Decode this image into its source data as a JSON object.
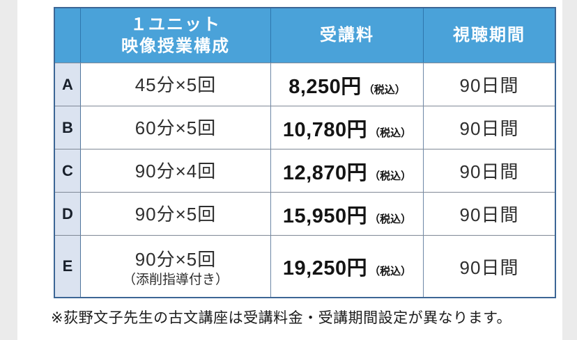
{
  "colors": {
    "page_background": "#ebebeb",
    "panel_background": "#ffffff",
    "header_background": "#4aa2d9",
    "header_text": "#ffffff",
    "row_label_background": "#dbe3f0",
    "table_border": "#3c6695"
  },
  "table": {
    "header": {
      "composition_line1": "１ユニット",
      "composition_line2": "映像授業構成",
      "fee": "受講料",
      "period": "視聴期間"
    },
    "rows": [
      {
        "label": "A",
        "composition": "45分×5回",
        "composition_note": "",
        "price": "8,250円",
        "tax_note": "（税込）",
        "period": "90日間"
      },
      {
        "label": "B",
        "composition": "60分×5回",
        "composition_note": "",
        "price": "10,780円",
        "tax_note": "（税込）",
        "period": "90日間"
      },
      {
        "label": "C",
        "composition": "90分×4回",
        "composition_note": "",
        "price": "12,870円",
        "tax_note": "（税込）",
        "period": "90日間"
      },
      {
        "label": "D",
        "composition": "90分×5回",
        "composition_note": "",
        "price": "15,950円",
        "tax_note": "（税込）",
        "period": "90日間"
      },
      {
        "label": "E",
        "composition": "90分×5回",
        "composition_note": "（添削指導付き）",
        "price": "19,250円",
        "tax_note": "（税込）",
        "period": "90日間"
      }
    ]
  },
  "footnote": "※荻野文子先生の古文講座は受講料金・受講期間設定が異なります。"
}
